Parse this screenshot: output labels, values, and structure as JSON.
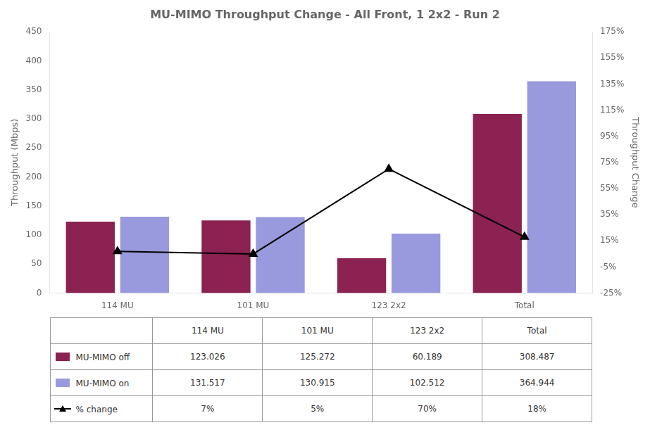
{
  "chart_data": {
    "type": "bar",
    "title": "MU-MIMO Throughput Change - All Front, 1 2x2 - Run 2",
    "categories": [
      "114 MU",
      "101 MU",
      "123 2x2",
      "Total"
    ],
    "series": [
      {
        "name": "MU-MIMO off",
        "color": "#8B2252",
        "values": [
          123.026,
          125.272,
          60.189,
          308.487
        ]
      },
      {
        "name": "MU-MIMO on",
        "color": "#9999DD",
        "values": [
          131.517,
          130.915,
          102.512,
          364.944
        ]
      },
      {
        "name": "% change",
        "type": "line",
        "axis": "y2",
        "color": "#000000",
        "marker": "triangle",
        "values": [
          7,
          5,
          70,
          18
        ],
        "value_labels": [
          "7%",
          "5%",
          "70%",
          "18%"
        ]
      }
    ],
    "ylabel": "Throughput (Mbps)",
    "y2label": "Throughput Change",
    "ylim": [
      0,
      450
    ],
    "yticks": [
      0,
      50,
      100,
      150,
      200,
      250,
      300,
      350,
      400,
      450
    ],
    "y2lim": [
      -25,
      175
    ],
    "y2ticks": [
      {
        "value": -25,
        "label": "-25%"
      },
      {
        "value": -5,
        "label": "-5%"
      },
      {
        "value": 15,
        "label": "15%"
      },
      {
        "value": 35,
        "label": "35%"
      },
      {
        "value": 55,
        "label": "55%"
      },
      {
        "value": 75,
        "label": "75%"
      },
      {
        "value": 95,
        "label": "95%"
      },
      {
        "value": 115,
        "label": "115%"
      },
      {
        "value": 135,
        "label": "135%"
      },
      {
        "value": 155,
        "label": "155%"
      },
      {
        "value": 175,
        "label": "175%"
      }
    ],
    "grid": false
  }
}
